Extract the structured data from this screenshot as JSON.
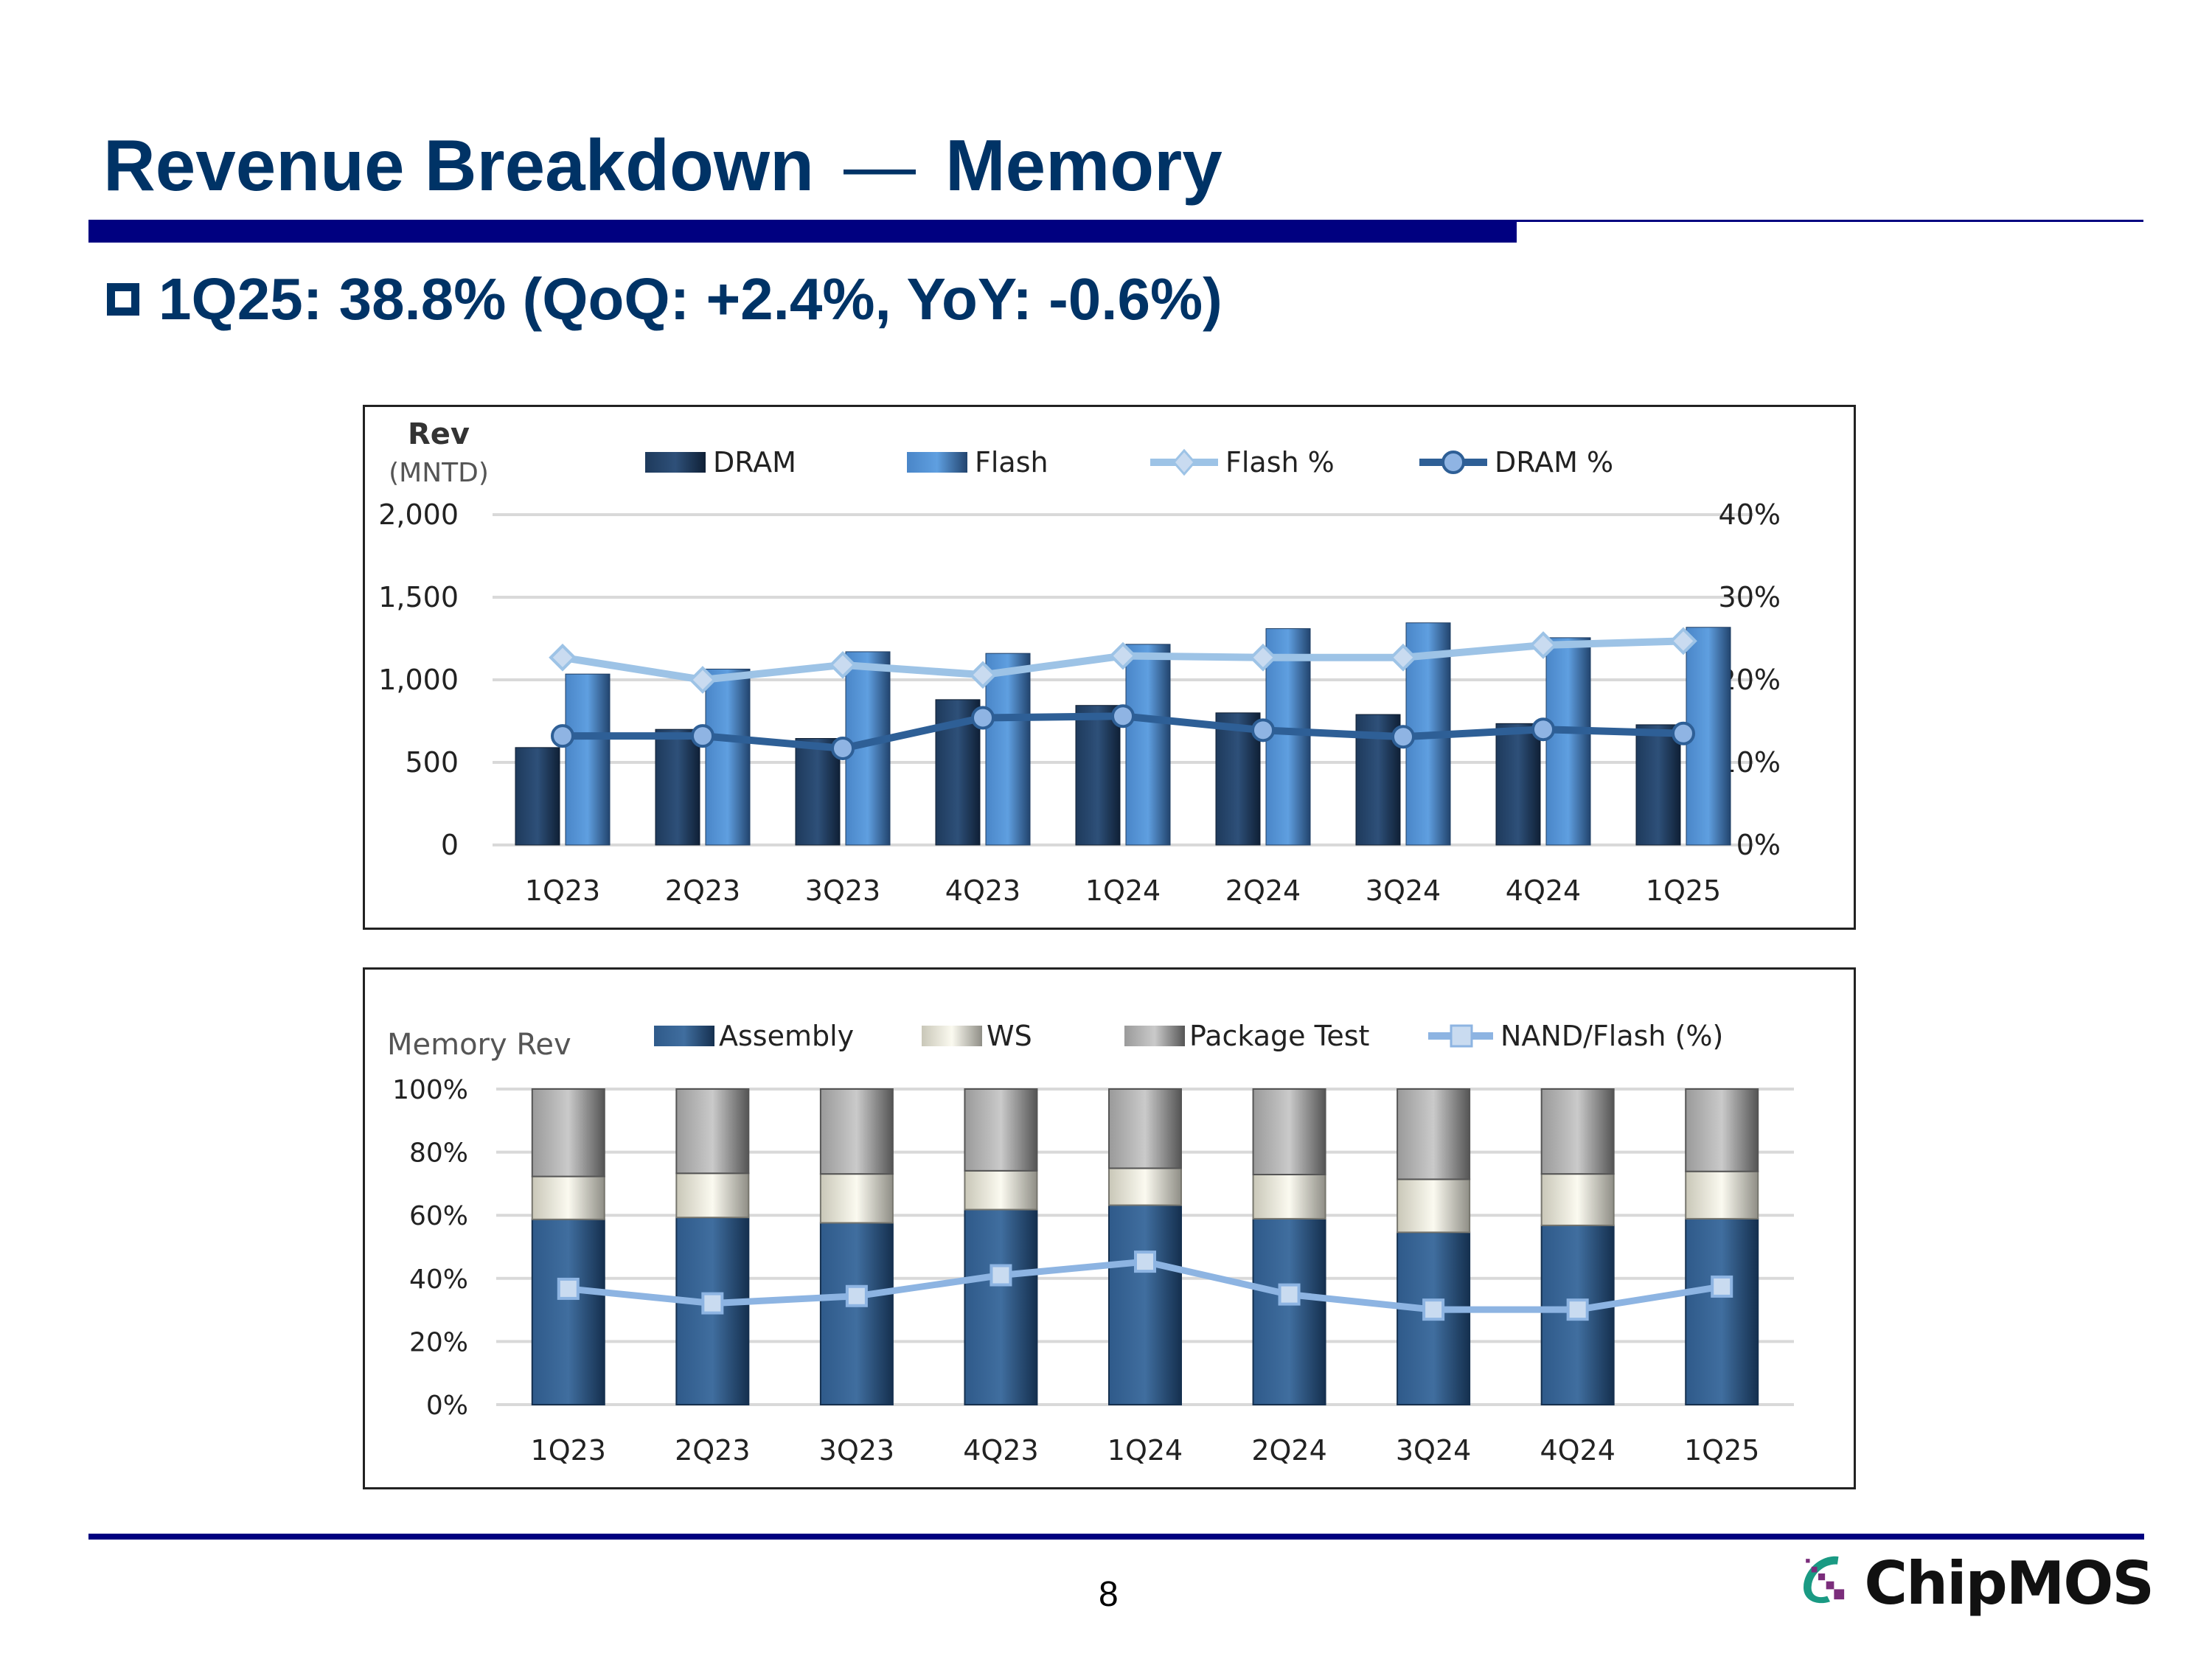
{
  "slide": {
    "title_left": "Revenue Breakdown",
    "title_dash": "—",
    "title_right": "Memory",
    "bullet": "1Q25: 38.8% (QoQ: +2.4%, YoY: -0.6%)",
    "page_number": "8",
    "logo_text": "ChipMOS"
  },
  "colors": {
    "title": "#003366",
    "rule": "#000080",
    "dram": "#2a4a6e",
    "flash": "#5b9bd5",
    "flash_pct": "#9dc3e6",
    "dram_pct": "#2e5f96",
    "assembly": "#3d6a9c",
    "ws": "#f4f2e6",
    "package_test": "#c4c4c4",
    "nand": "#8db4e2",
    "logo_green": "#1a9a83",
    "logo_purple": "#7b2d7b"
  },
  "chart_data": [
    {
      "type": "bar",
      "title": "",
      "ylabel": "Rev",
      "ylabel_unit": "(MNTD)",
      "y2label": "",
      "categories": [
        "1Q23",
        "2Q23",
        "3Q23",
        "4Q23",
        "1Q24",
        "2Q24",
        "3Q24",
        "4Q24",
        "1Q25"
      ],
      "ylim": [
        0,
        2000
      ],
      "yticks": [
        "0",
        "500",
        "1,000",
        "1,500",
        "2,000"
      ],
      "y2lim": [
        0,
        40
      ],
      "y2ticks": [
        "0%",
        "10%",
        "20%",
        "30%",
        "40%"
      ],
      "grid": true,
      "legend_position": "top",
      "series": [
        {
          "name": "DRAM",
          "kind": "bar",
          "axis": "left",
          "values": [
            590,
            700,
            645,
            880,
            845,
            800,
            790,
            735,
            728
          ]
        },
        {
          "name": "Flash",
          "kind": "bar",
          "axis": "left",
          "values": [
            1035,
            1065,
            1170,
            1160,
            1215,
            1310,
            1345,
            1255,
            1318
          ]
        },
        {
          "name": "Flash %",
          "kind": "line",
          "marker": "diamond",
          "axis": "right",
          "values": [
            22.7,
            20.0,
            21.8,
            20.6,
            22.9,
            22.7,
            22.7,
            24.2,
            24.7
          ]
        },
        {
          "name": "DRAM %",
          "kind": "line",
          "marker": "circle",
          "axis": "right",
          "values": [
            13.2,
            13.2,
            11.7,
            15.4,
            15.6,
            13.9,
            13.1,
            14.0,
            13.5
          ]
        }
      ]
    },
    {
      "type": "bar",
      "stacked": true,
      "title": "",
      "ylabel": "Memory Rev",
      "categories": [
        "1Q23",
        "2Q23",
        "3Q23",
        "4Q23",
        "1Q24",
        "2Q24",
        "3Q24",
        "4Q24",
        "1Q25"
      ],
      "ylim": [
        0,
        100
      ],
      "yticks": [
        "0%",
        "20%",
        "40%",
        "60%",
        "80%",
        "100%"
      ],
      "grid": true,
      "legend_position": "top",
      "series": [
        {
          "name": "Assembly",
          "kind": "bar",
          "values": [
            58.7,
            59.3,
            57.6,
            61.8,
            63.2,
            58.9,
            54.6,
            56.8,
            58.9
          ]
        },
        {
          "name": "WS",
          "kind": "bar",
          "values": [
            13.6,
            14.0,
            15.5,
            12.3,
            11.7,
            14.0,
            16.8,
            16.3,
            15.0
          ]
        },
        {
          "name": "Package Test",
          "kind": "bar",
          "values": [
            27.7,
            26.7,
            26.9,
            25.9,
            25.1,
            27.1,
            28.6,
            26.9,
            26.1
          ]
        },
        {
          "name": "NAND/Flash (%)",
          "kind": "line",
          "marker": "square",
          "values": [
            36.7,
            32.1,
            34.4,
            41.0,
            45.3,
            34.9,
            30.1,
            30.1,
            37.4
          ]
        }
      ]
    }
  ]
}
